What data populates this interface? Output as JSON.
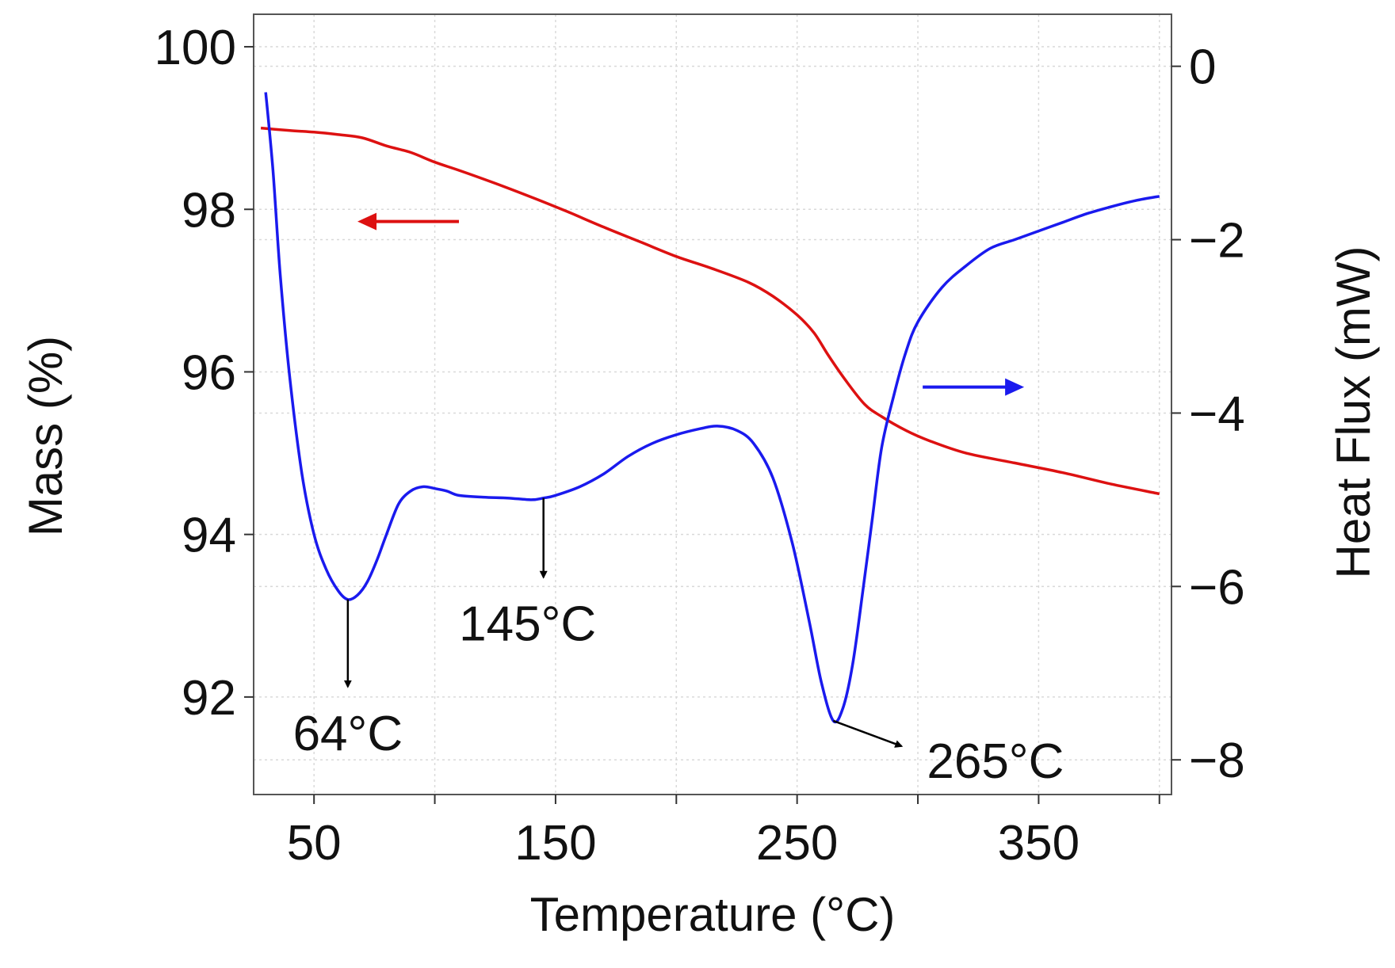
{
  "chart_data": {
    "type": "line",
    "title": "",
    "xlabel": "Temperature (°C)",
    "ylabel_left": "Mass (%)",
    "ylabel_right": "Heat Flux (mW)",
    "xlim": [
      25,
      405
    ],
    "ylim_left": [
      90.8,
      100.4
    ],
    "ylim_right": [
      -8.4,
      0.6
    ],
    "xticks": [
      50,
      150,
      250,
      350
    ],
    "xticks_minor": [
      100,
      200,
      300,
      400
    ],
    "yticks_left": [
      92,
      94,
      96,
      98,
      100
    ],
    "yticks_right": [
      -8,
      -6,
      -4,
      -2,
      0
    ],
    "grid": true,
    "series": [
      {
        "name": "Mass",
        "axis": "left",
        "color": "#dd1111",
        "x": [
          28,
          40,
          50,
          60,
          70,
          80,
          90,
          100,
          110,
          125,
          140,
          155,
          170,
          185,
          200,
          215,
          230,
          240,
          250,
          257,
          263,
          270,
          278,
          285,
          295,
          305,
          320,
          340,
          360,
          380,
          400
        ],
        "y": [
          99.0,
          98.97,
          98.95,
          98.92,
          98.88,
          98.78,
          98.7,
          98.58,
          98.48,
          98.32,
          98.15,
          97.97,
          97.78,
          97.6,
          97.42,
          97.27,
          97.1,
          96.93,
          96.7,
          96.48,
          96.2,
          95.9,
          95.6,
          95.45,
          95.28,
          95.15,
          95.0,
          94.88,
          94.76,
          94.62,
          94.5
        ]
      },
      {
        "name": "Heat Flux",
        "axis": "right",
        "color": "#1a1aee",
        "x": [
          30,
          33,
          36,
          40,
          45,
          50,
          55,
          60,
          64,
          68,
          72,
          76,
          80,
          85,
          90,
          95,
          100,
          105,
          110,
          120,
          130,
          140,
          145,
          150,
          160,
          170,
          180,
          190,
          200,
          210,
          217,
          225,
          232,
          240,
          248,
          255,
          260,
          265,
          269,
          273,
          277,
          281,
          285,
          290,
          295,
          300,
          310,
          320,
          330,
          340,
          350,
          360,
          370,
          380,
          390,
          400
        ],
        "y": [
          -0.3,
          -1.2,
          -2.4,
          -3.6,
          -4.7,
          -5.4,
          -5.8,
          -6.05,
          -6.15,
          -6.1,
          -5.95,
          -5.7,
          -5.4,
          -5.05,
          -4.9,
          -4.85,
          -4.87,
          -4.9,
          -4.95,
          -4.97,
          -4.98,
          -5.0,
          -4.98,
          -4.95,
          -4.85,
          -4.7,
          -4.5,
          -4.35,
          -4.25,
          -4.18,
          -4.15,
          -4.2,
          -4.35,
          -4.75,
          -5.5,
          -6.4,
          -7.1,
          -7.55,
          -7.4,
          -6.9,
          -6.1,
          -5.25,
          -4.4,
          -3.8,
          -3.3,
          -2.95,
          -2.55,
          -2.3,
          -2.1,
          -2.0,
          -1.9,
          -1.8,
          -1.7,
          -1.62,
          -1.55,
          -1.5
        ]
      }
    ],
    "annotations": [
      {
        "text": "64°C",
        "x": 64,
        "y_right": -6.15,
        "arrow": "down"
      },
      {
        "text": "145°C",
        "x": 145,
        "y_right": -4.98,
        "arrow": "down"
      },
      {
        "text": "265°C",
        "x": 265,
        "y_right": -7.55,
        "arrow": "down-right"
      },
      {
        "text": "",
        "axis_indicator": "left",
        "color": "#dd1111",
        "points_to": "Mass"
      },
      {
        "text": "",
        "axis_indicator": "right",
        "color": "#1a1aee",
        "points_to": "Heat Flux"
      }
    ]
  }
}
